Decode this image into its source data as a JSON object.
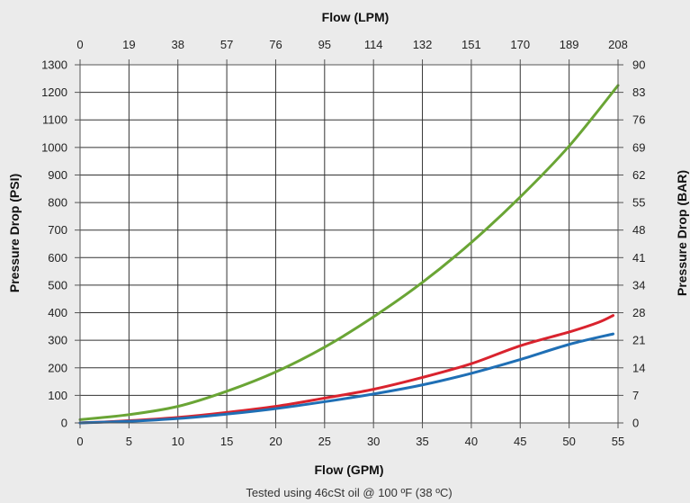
{
  "chart_data": {
    "type": "line",
    "title": "",
    "xlabel": "Flow (GPM)",
    "ylabel": "Pressure Drop (PSI)",
    "x2label": "Flow (LPM)",
    "y2label": "Pressure Drop (BAR)",
    "note": "Tested using 46cSt oil @ 100 ºF (38 ºC)",
    "xlim": [
      0,
      55
    ],
    "ylim": [
      0,
      1300
    ],
    "grid": true,
    "x_ticks": [
      "0",
      "5",
      "10",
      "15",
      "20",
      "25",
      "30",
      "35",
      "40",
      "45",
      "50",
      "55"
    ],
    "x_tick_values": [
      0,
      5,
      10,
      15,
      20,
      25,
      30,
      35,
      40,
      45,
      50,
      55
    ],
    "y_ticks": [
      "0",
      "100",
      "200",
      "300",
      "400",
      "500",
      "600",
      "700",
      "800",
      "900",
      "1000",
      "1100",
      "1200",
      "1300"
    ],
    "y_tick_values": [
      0,
      100,
      200,
      300,
      400,
      500,
      600,
      700,
      800,
      900,
      1000,
      1100,
      1200,
      1300
    ],
    "x2_ticks": [
      "0",
      "19",
      "38",
      "57",
      "76",
      "95",
      "114",
      "132",
      "151",
      "170",
      "189",
      "208"
    ],
    "y2_ticks": [
      "0",
      "7",
      "14",
      "21",
      "28",
      "34",
      "41",
      "48",
      "55",
      "62",
      "69",
      "76",
      "83",
      "90"
    ],
    "series": [
      {
        "color": "#6aa535",
        "x": [
          0,
          5,
          10,
          15,
          20,
          25,
          30,
          35,
          40,
          45,
          50,
          55
        ],
        "y": [
          12,
          30,
          60,
          115,
          185,
          275,
          385,
          510,
          655,
          820,
          1005,
          1225
        ]
      },
      {
        "color": "#d9232e",
        "x": [
          0,
          5,
          10,
          15,
          20,
          25,
          30,
          35,
          40,
          45,
          50,
          53,
          54.5
        ],
        "y": [
          0,
          8,
          20,
          38,
          60,
          90,
          122,
          165,
          215,
          280,
          330,
          365,
          390
        ]
      },
      {
        "color": "#1f6fb5",
        "x": [
          0,
          5,
          10,
          15,
          20,
          25,
          30,
          35,
          40,
          45,
          50,
          54.5
        ],
        "y": [
          0,
          6,
          16,
          32,
          52,
          77,
          105,
          138,
          180,
          230,
          285,
          323
        ]
      }
    ]
  }
}
